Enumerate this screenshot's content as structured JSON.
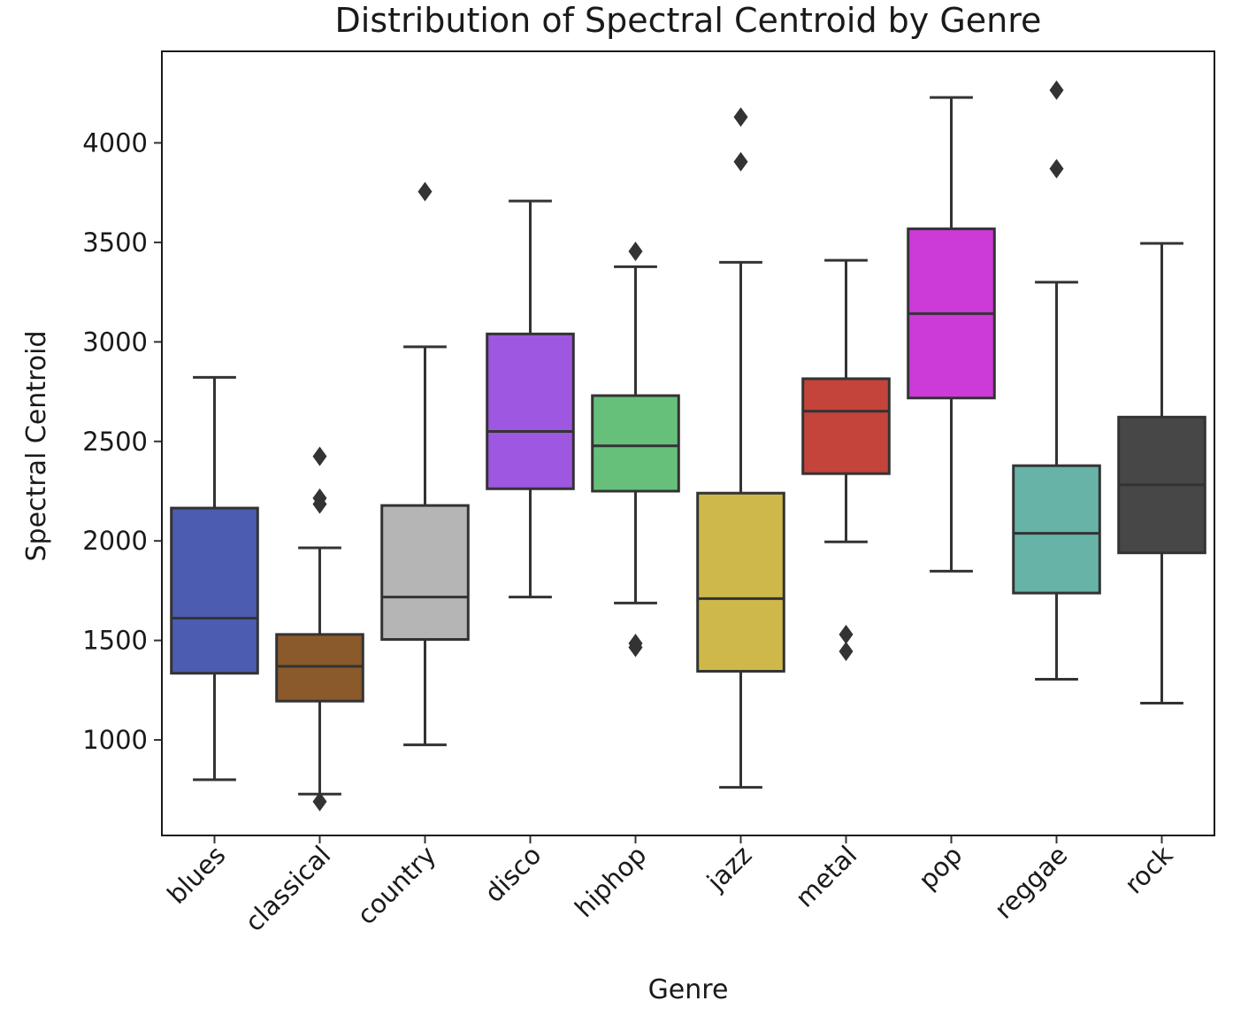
{
  "chart_data": {
    "type": "box",
    "title": "Distribution of Spectral Centroid by Genre",
    "xlabel": "Genre",
    "ylabel": "Spectral Centroid",
    "ylim": [
      520,
      4460
    ],
    "yticks": [
      1000,
      1500,
      2000,
      2500,
      3000,
      3500,
      4000
    ],
    "grid": false,
    "categories": [
      "blues",
      "classical",
      "country",
      "disco",
      "hiphop",
      "jazz",
      "metal",
      "pop",
      "reggae",
      "rock"
    ],
    "boxes": [
      {
        "category": "blues",
        "color": "#4c5cb0",
        "whisker_low": 800,
        "q1": 1335,
        "median": 1612,
        "q3": 2165,
        "whisker_high": 2822,
        "outliers": []
      },
      {
        "category": "classical",
        "color": "#8b5a2b",
        "whisker_low": 728,
        "q1": 1195,
        "median": 1370,
        "q3": 1530,
        "whisker_high": 1965,
        "outliers": [
          690,
          2185,
          2215,
          2425
        ]
      },
      {
        "category": "country",
        "color": "#b5b5b5",
        "whisker_low": 975,
        "q1": 1505,
        "median": 1718,
        "q3": 2178,
        "whisker_high": 2975,
        "outliers": [
          3755
        ]
      },
      {
        "category": "disco",
        "color": "#9e57e0",
        "whisker_low": 1718,
        "q1": 2262,
        "median": 2550,
        "q3": 3040,
        "whisker_high": 3708,
        "outliers": []
      },
      {
        "category": "hiphop",
        "color": "#66c07a",
        "whisker_low": 1688,
        "q1": 2250,
        "median": 2478,
        "q3": 2730,
        "whisker_high": 3378,
        "outliers": [
          1465,
          1485,
          3455
        ]
      },
      {
        "category": "jazz",
        "color": "#cfb84a",
        "whisker_low": 762,
        "q1": 1345,
        "median": 1710,
        "q3": 2240,
        "whisker_high": 3400,
        "outliers": [
          3905,
          4130
        ]
      },
      {
        "category": "metal",
        "color": "#c4433a",
        "whisker_low": 1995,
        "q1": 2338,
        "median": 2652,
        "q3": 2815,
        "whisker_high": 3410,
        "outliers": [
          1445,
          1530
        ]
      },
      {
        "category": "pop",
        "color": "#cc3ad8",
        "whisker_low": 1848,
        "q1": 2718,
        "median": 3142,
        "q3": 3568,
        "whisker_high": 4228,
        "outliers": []
      },
      {
        "category": "reggae",
        "color": "#67b3a8",
        "whisker_low": 1305,
        "q1": 1738,
        "median": 2038,
        "q3": 2378,
        "whisker_high": 3300,
        "outliers": [
          3870,
          4265
        ]
      },
      {
        "category": "rock",
        "color": "#474747",
        "whisker_low": 1185,
        "q1": 1940,
        "median": 2282,
        "q3": 2622,
        "whisker_high": 3495,
        "outliers": []
      }
    ]
  }
}
